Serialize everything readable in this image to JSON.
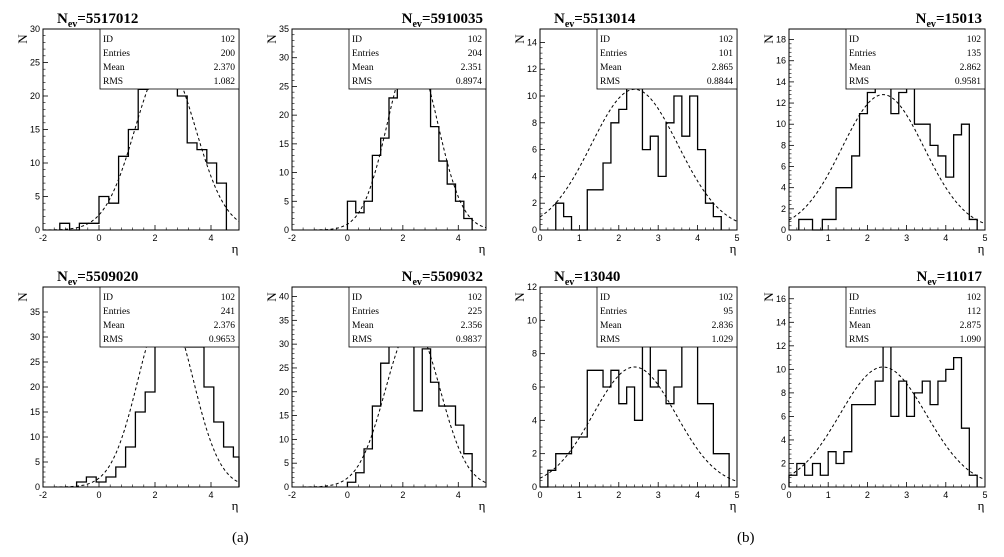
{
  "captions": [
    "(a)",
    "(b)"
  ],
  "stat_labels": [
    "ID",
    "Entries",
    "Mean",
    "RMS"
  ],
  "chart_data": [
    {
      "type": "bar",
      "title_main": "N",
      "title_sub": "ev",
      "title_value": "=5517012",
      "xlabel": "η",
      "ylabel": "N",
      "xlim": [
        -2,
        5
      ],
      "ylim": [
        0,
        30
      ],
      "xticks": [
        -2,
        0,
        2,
        4
      ],
      "yticks": [
        0,
        5,
        10,
        15,
        20,
        25,
        30
      ],
      "stats": {
        "ID": "102",
        "Entries": "200",
        "Mean": "2.370",
        "RMS": "1.082"
      },
      "bin_edges": [
        -1.4,
        -1.05,
        -0.7,
        -0.35,
        0,
        0.35,
        0.7,
        1.05,
        1.4,
        1.75,
        2.1,
        2.45,
        2.8,
        3.15,
        3.5,
        3.85,
        4.2,
        4.55
      ],
      "counts": [
        1,
        0,
        1,
        1,
        5,
        4,
        11,
        15,
        21,
        27,
        26,
        23,
        20,
        13,
        12,
        10,
        7
      ],
      "fit": {
        "mean": 2.37,
        "sigma": 1.08,
        "peak": 25
      }
    },
    {
      "type": "bar",
      "title_main": "N",
      "title_sub": "ev",
      "title_value": "=5910035",
      "xlabel": "η",
      "ylabel": "N",
      "xlim": [
        -2,
        5
      ],
      "ylim": [
        0,
        35
      ],
      "xticks": [
        -2,
        0,
        2,
        4
      ],
      "yticks": [
        0,
        5,
        10,
        15,
        20,
        25,
        30,
        35
      ],
      "stats": {
        "ID": "102",
        "Entries": "204",
        "Mean": "2.351",
        "RMS": "0.8974"
      },
      "bin_edges": [
        0,
        0.3,
        0.6,
        0.9,
        1.2,
        1.5,
        1.8,
        2.1,
        2.4,
        2.7,
        3.0,
        3.3,
        3.6,
        3.9,
        4.2,
        4.5
      ],
      "counts": [
        5,
        3,
        5,
        13,
        16,
        23,
        30,
        32,
        28,
        34,
        18,
        12,
        8,
        5,
        2
      ],
      "fit": {
        "mean": 2.35,
        "sigma": 0.9,
        "peak": 31
      }
    },
    {
      "type": "bar",
      "title_main": "N",
      "title_sub": "ev",
      "title_value": "=5513014",
      "xlabel": "η",
      "ylabel": "N",
      "xlim": [
        0,
        5
      ],
      "ylim": [
        0,
        15
      ],
      "xticks": [
        0,
        1,
        2,
        3,
        4,
        5
      ],
      "yticks": [
        0,
        2,
        4,
        6,
        8,
        10,
        12,
        14
      ],
      "stats": {
        "ID": "102",
        "Entries": "101",
        "Mean": "2.865",
        "RMS": "0.8844"
      },
      "bin_edges": [
        0.4,
        0.6,
        0.8,
        1.2,
        1.6,
        1.8,
        2.0,
        2.2,
        2.4,
        2.6,
        2.8,
        3.0,
        3.2,
        3.4,
        3.6,
        3.8,
        4.0,
        4.2,
        4.4
      ],
      "counts": [
        2,
        1,
        0,
        3,
        5,
        8,
        9,
        11,
        14,
        6,
        7,
        4,
        8,
        10,
        7,
        10,
        6,
        2,
        1
      ],
      "fit": {
        "mean": 2.4,
        "sigma": 1.1,
        "peak": 10.5
      }
    },
    {
      "type": "bar",
      "title_main": "N",
      "title_sub": "ev",
      "title_value": "=15013",
      "xlabel": "η",
      "ylabel": "N",
      "xlim": [
        0,
        5
      ],
      "ylim": [
        0,
        19
      ],
      "xticks": [
        0,
        1,
        2,
        3,
        4,
        5
      ],
      "yticks": [
        0,
        2,
        4,
        6,
        8,
        10,
        12,
        14,
        16,
        18
      ],
      "stats": {
        "ID": "102",
        "Entries": "135",
        "Mean": "2.862",
        "RMS": "0.9581"
      },
      "bin_edges": [
        0.25,
        0.6,
        0.85,
        1.2,
        1.6,
        1.8,
        2.0,
        2.2,
        2.4,
        2.6,
        2.8,
        3.0,
        3.2,
        3.4,
        3.6,
        3.8,
        4.0,
        4.2,
        4.4,
        4.6,
        4.8
      ],
      "counts": [
        1,
        0,
        1,
        4,
        7,
        11,
        13,
        14,
        14,
        11,
        13,
        17,
        10,
        10,
        8,
        7,
        5,
        9,
        10,
        1
      ],
      "fit": {
        "mean": 2.4,
        "sigma": 1.05,
        "peak": 12.8
      }
    },
    {
      "type": "bar",
      "title_main": "N",
      "title_sub": "ev",
      "title_value": "=5509020",
      "xlabel": "η",
      "ylabel": "N",
      "xlim": [
        -2,
        5
      ],
      "ylim": [
        0,
        40
      ],
      "xticks": [
        -2,
        0,
        2,
        4
      ],
      "yticks": [
        0,
        5,
        10,
        15,
        20,
        25,
        30,
        35
      ],
      "stats": {
        "ID": "102",
        "Entries": "241",
        "Mean": "2.376",
        "RMS": "0.9653"
      },
      "bin_edges": [
        -0.8,
        -0.45,
        -0.1,
        0.25,
        0.6,
        0.95,
        1.3,
        1.65,
        2.0,
        2.35,
        2.7,
        3.05,
        3.4,
        3.75,
        4.1,
        4.45,
        4.8
      ],
      "counts": [
        1,
        2,
        1,
        2,
        4,
        8,
        15,
        19,
        30,
        35,
        34,
        28,
        28,
        20,
        13,
        8,
        6
      ],
      "fit": {
        "mean": 2.38,
        "sigma": 0.97,
        "peak": 36
      }
    },
    {
      "type": "bar",
      "title_main": "N",
      "title_sub": "ev",
      "title_value": "=5509032",
      "xlabel": "η",
      "ylabel": "N",
      "xlim": [
        -2,
        5
      ],
      "ylim": [
        0,
        42
      ],
      "xticks": [
        -2,
        0,
        2,
        4
      ],
      "yticks": [
        0,
        5,
        10,
        15,
        20,
        25,
        30,
        35,
        40
      ],
      "stats": {
        "ID": "102",
        "Entries": "225",
        "Mean": "2.356",
        "RMS": "0.9837"
      },
      "bin_edges": [
        0,
        0.3,
        0.6,
        0.9,
        1.2,
        1.5,
        1.8,
        2.1,
        2.4,
        2.7,
        3.0,
        3.3,
        3.6,
        3.9,
        4.2,
        4.5
      ],
      "counts": [
        1,
        3,
        8,
        17,
        26,
        37,
        36,
        34,
        16,
        29,
        22,
        17,
        17,
        13,
        7
      ],
      "fit": {
        "mean": 2.36,
        "sigma": 0.98,
        "peak": 34
      }
    },
    {
      "type": "bar",
      "title_main": "N",
      "title_sub": "ev",
      "title_value": "=13040",
      "xlabel": "η",
      "ylabel": "N",
      "xlim": [
        0,
        5
      ],
      "ylim": [
        0,
        12
      ],
      "xticks": [
        0,
        1,
        2,
        3,
        4,
        5
      ],
      "yticks": [
        0,
        2,
        4,
        6,
        8,
        10,
        12
      ],
      "stats": {
        "ID": "102",
        "Entries": "95",
        "Mean": "2.836",
        "RMS": "1.029"
      },
      "bin_edges": [
        0,
        0.2,
        0.4,
        0.8,
        1.2,
        1.6,
        1.8,
        2.0,
        2.2,
        2.4,
        2.6,
        2.8,
        3.0,
        3.2,
        3.4,
        3.6,
        3.8,
        4.0,
        4.2,
        4.4,
        4.8
      ],
      "counts": [
        0,
        1,
        2,
        3,
        7,
        6,
        7,
        5,
        6,
        4,
        10,
        6,
        7,
        5,
        6,
        10,
        11,
        5,
        5,
        2
      ],
      "fit": {
        "mean": 2.4,
        "sigma": 1.05,
        "peak": 7.2
      }
    },
    {
      "type": "bar",
      "title_main": "N",
      "title_sub": "ev",
      "title_value": "=11017",
      "xlabel": "η",
      "ylabel": "N",
      "xlim": [
        0,
        5
      ],
      "ylim": [
        0,
        17
      ],
      "xticks": [
        0,
        1,
        2,
        3,
        4,
        5
      ],
      "yticks": [
        0,
        2,
        4,
        6,
        8,
        10,
        12,
        14,
        16
      ],
      "stats": {
        "ID": "102",
        "Entries": "112",
        "Mean": "2.875",
        "RMS": "1.090"
      },
      "bin_edges": [
        0,
        0.2,
        0.4,
        0.6,
        0.8,
        1.0,
        1.2,
        1.4,
        1.6,
        1.8,
        2.0,
        2.2,
        2.4,
        2.6,
        2.8,
        3.0,
        3.2,
        3.4,
        3.6,
        3.8,
        4.0,
        4.2,
        4.4,
        4.6,
        4.8
      ],
      "counts": [
        1,
        2,
        1,
        2,
        1,
        3,
        2,
        3,
        7,
        7,
        7,
        9,
        15,
        6,
        9,
        6,
        8,
        9,
        7,
        9,
        10,
        11,
        5,
        1
      ],
      "fit": {
        "mean": 2.4,
        "sigma": 1.1,
        "peak": 10.2
      }
    }
  ]
}
